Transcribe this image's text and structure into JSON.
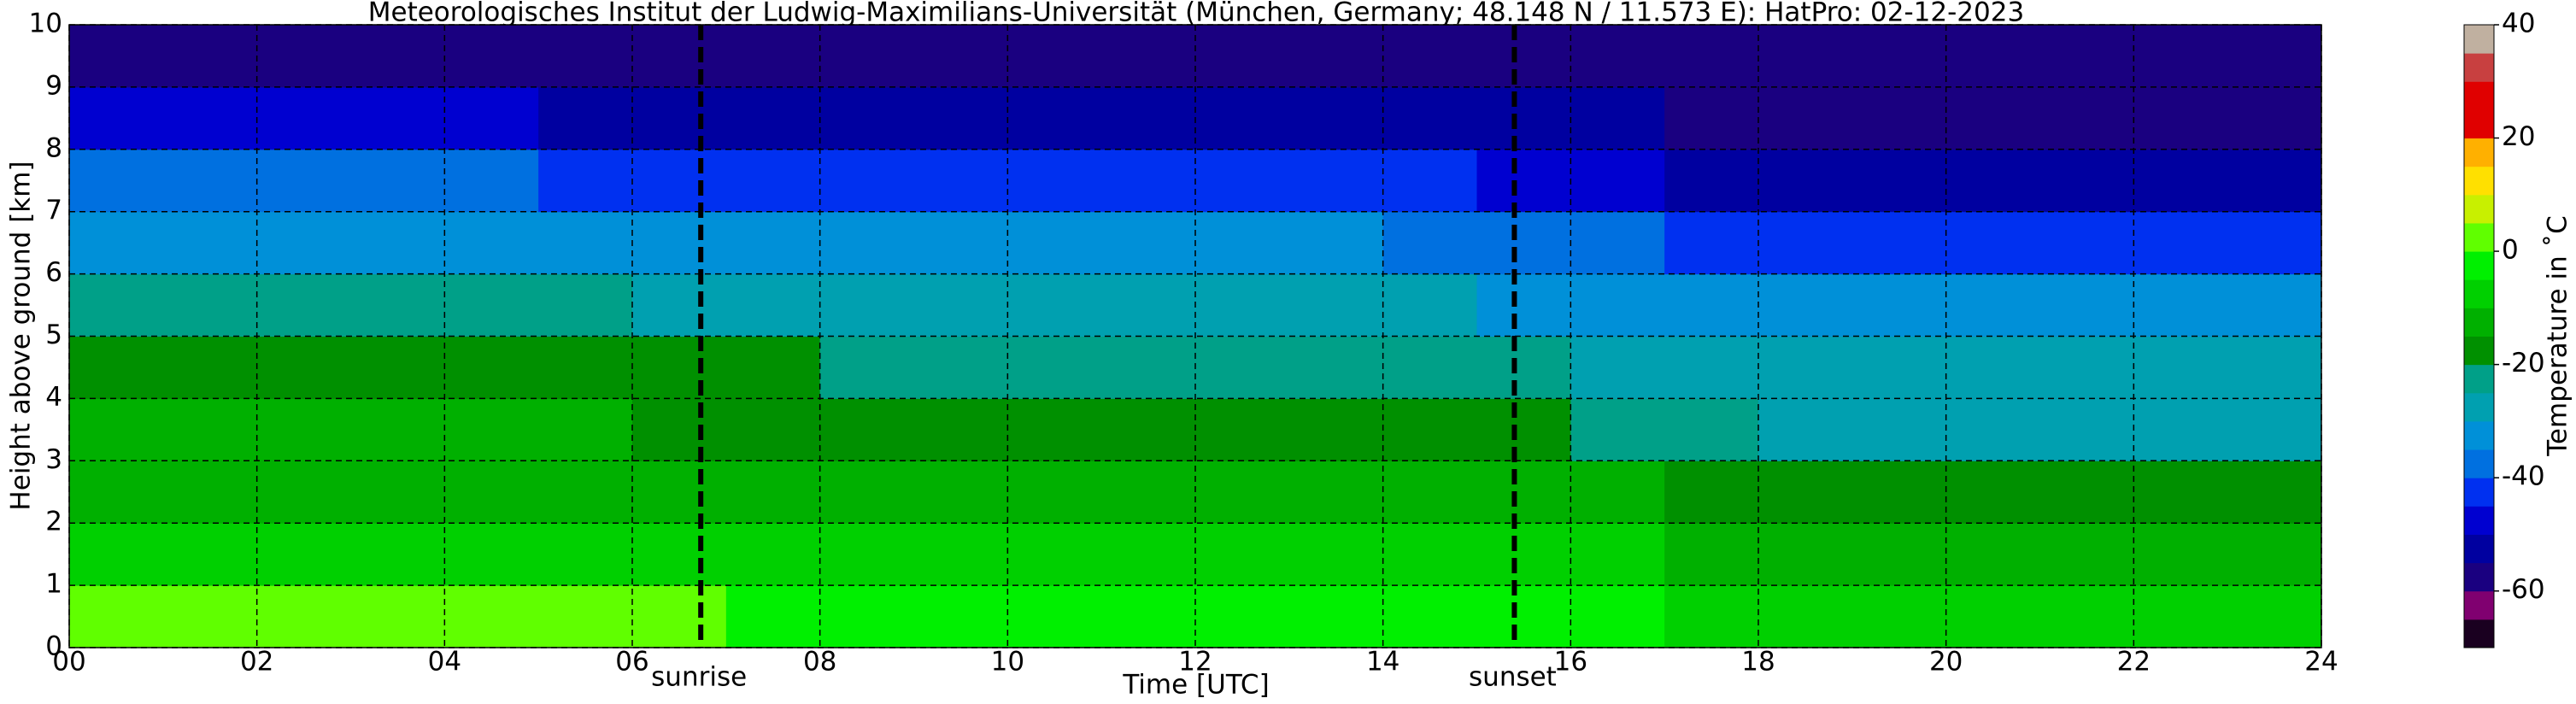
{
  "chart_data": {
    "type": "heatmap",
    "title": "Meteorologisches Institut der Ludwig-Maximilians-Universität (München, Germany; 48.148 N / 11.573 E):    HatPro: 02-12-2023",
    "xlabel": "Time [UTC]",
    "ylabel": "Height above ground [km]",
    "colorbar_label": "Temperature in ˚C",
    "xbins": [
      0,
      1,
      2,
      3,
      4,
      5,
      6,
      7,
      8,
      9,
      10,
      11,
      12,
      13,
      14,
      15,
      16,
      17,
      18,
      19,
      20,
      21,
      22,
      23,
      24
    ],
    "ybins": [
      0,
      1,
      2,
      3,
      4,
      5,
      6,
      7,
      8,
      9,
      10
    ],
    "values": [
      [
        1,
        1,
        1,
        1,
        0,
        0,
        0,
        -1,
        -1,
        -2,
        -2,
        -3,
        -3,
        -3,
        -3,
        -4,
        -5,
        -6,
        -8,
        -8,
        -8,
        -8,
        -8,
        -8
      ],
      [
        -6,
        -6,
        -6,
        -6,
        -6,
        -7,
        -7,
        -7,
        -7,
        -8,
        -8,
        -8,
        -8,
        -8,
        -9,
        -9,
        -10,
        -11,
        -13,
        -13,
        -13,
        -13,
        -13,
        -13
      ],
      [
        -11,
        -11,
        -11,
        -11,
        -11,
        -11,
        -11,
        -11,
        -12,
        -12,
        -12,
        -12,
        -12,
        -13,
        -13,
        -14,
        -15,
        -16,
        -17,
        -17,
        -17,
        -17,
        -17,
        -17
      ],
      [
        -15,
        -15,
        -15,
        -15,
        -15,
        -15,
        -16,
        -16,
        -16,
        -16,
        -17,
        -17,
        -17,
        -17,
        -18,
        -19,
        -21,
        -24,
        -26,
        -26,
        -26,
        -26,
        -26,
        -26
      ],
      [
        -19,
        -19,
        -19,
        -19,
        -19,
        -20,
        -20,
        -20,
        -21,
        -21,
        -21,
        -22,
        -22,
        -22,
        -23,
        -25,
        -27,
        -29,
        -30,
        -30,
        -30,
        -30,
        -30,
        -30
      ],
      [
        -24,
        -24,
        -24,
        -24,
        -25,
        -25,
        -26,
        -26,
        -27,
        -27,
        -27,
        -28,
        -28,
        -28,
        -29,
        -31,
        -33,
        -34,
        -35,
        -35,
        -35,
        -35,
        -35,
        -35
      ],
      [
        -31,
        -31,
        -31,
        -31,
        -32,
        -32,
        -33,
        -33,
        -34,
        -34,
        -34,
        -35,
        -35,
        -35,
        -36,
        -38,
        -39,
        -41,
        -42,
        -42,
        -42,
        -42,
        -42,
        -42
      ],
      [
        -40,
        -40,
        -40,
        -40,
        -40,
        -41,
        -41,
        -41,
        -42,
        -42,
        -42,
        -43,
        -43,
        -44,
        -45,
        -47,
        -50,
        -53,
        -55,
        -55,
        -55,
        -55,
        -55,
        -55
      ],
      [
        -50,
        -50,
        -50,
        -50,
        -50,
        -51,
        -51,
        -51,
        -51,
        -52,
        -52,
        -52,
        -52,
        -53,
        -53,
        -54,
        -55,
        -56,
        -57,
        -57,
        -57,
        -57,
        -57,
        -57
      ],
      [
        -56,
        -56,
        -56,
        -56,
        -56,
        -56,
        -56,
        -56,
        -56,
        -56,
        -56,
        -56,
        -56,
        -56,
        -57,
        -57,
        -57,
        -58,
        -58,
        -59,
        -59,
        -59,
        -59,
        -60
      ]
    ],
    "xlim": [
      0,
      24
    ],
    "xticks": [
      {
        "value": 0,
        "label": "00"
      },
      {
        "value": 2,
        "label": "02"
      },
      {
        "value": 4,
        "label": "04"
      },
      {
        "value": 6,
        "label": "06"
      },
      {
        "value": 8,
        "label": "08"
      },
      10,
      12,
      14,
      16,
      18,
      20,
      22,
      24
    ],
    "ylim": [
      0,
      10
    ],
    "yticks": [
      0,
      1,
      2,
      3,
      4,
      5,
      6,
      7,
      8,
      9,
      10
    ],
    "grid": true,
    "annotations": [
      {
        "label": "sunrise",
        "x": 6.73
      },
      {
        "label": "sunset",
        "x": 15.4
      }
    ],
    "clim": [
      -70,
      40
    ],
    "cticks": [
      -60,
      -40,
      -20,
      0,
      20,
      40
    ],
    "colormap": [
      "#1a0020",
      "#800070",
      "#1a0080",
      "#0000a0",
      "#0000d0",
      "#0030f0",
      "#0070e0",
      "#0090d8",
      "#00a0b0",
      "#00a088",
      "#009000",
      "#00b000",
      "#00d000",
      "#00f000",
      "#60ff00",
      "#c8f000",
      "#ffe000",
      "#ffb000",
      "#e00000",
      "#e00000",
      "#c84040",
      "#c0b0a0"
    ]
  }
}
